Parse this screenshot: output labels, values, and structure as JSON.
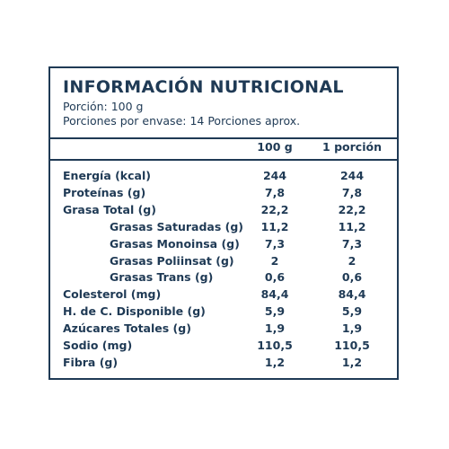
{
  "title": "INFORMACIÓN NUTRICIONAL",
  "portion": "Porción: 100 g",
  "servings": "Porciones por envase: 14 Porciones aprox.",
  "columns": {
    "per100": "100 g",
    "perPortion": "1 porción"
  },
  "rows": [
    {
      "label": "Energía (kcal)",
      "v100": "244",
      "vPortion": "244",
      "indent": false
    },
    {
      "label": "Proteínas (g)",
      "v100": "7,8",
      "vPortion": "7,8",
      "indent": false
    },
    {
      "label": "Grasa Total (g)",
      "v100": "22,2",
      "vPortion": "22,2",
      "indent": false
    },
    {
      "label": "Grasas Saturadas (g)",
      "v100": "11,2",
      "vPortion": "11,2",
      "indent": true
    },
    {
      "label": "Grasas Monoinsa (g)",
      "v100": "7,3",
      "vPortion": "7,3",
      "indent": true
    },
    {
      "label": "Grasas Poliinsat (g)",
      "v100": "2",
      "vPortion": "2",
      "indent": true
    },
    {
      "label": "Grasas Trans (g)",
      "v100": "0,6",
      "vPortion": "0,6",
      "indent": true
    },
    {
      "label": "Colesterol (mg)",
      "v100": "84,4",
      "vPortion": "84,4",
      "indent": false
    },
    {
      "label": "H. de C. Disponible (g)",
      "v100": "5,9",
      "vPortion": "5,9",
      "indent": false
    },
    {
      "label": "Azúcares Totales (g)",
      "v100": "1,9",
      "vPortion": "1,9",
      "indent": false
    },
    {
      "label": "Sodio (mg)",
      "v100": "110,5",
      "vPortion": "110,5",
      "indent": false
    },
    {
      "label": "Fibra (g)",
      "v100": "1,2",
      "vPortion": "1,2",
      "indent": false
    }
  ]
}
